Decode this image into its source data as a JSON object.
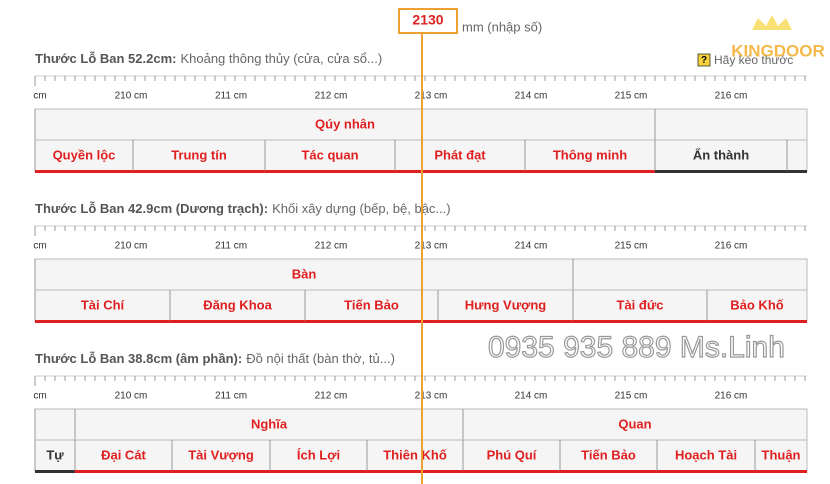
{
  "header": {
    "value": "2130",
    "unit": "mm (nhập số)",
    "logo": "KINGDOOR",
    "hint": "Hãy kéo thước"
  },
  "watermark": "0935 935 889 Ms.Linh",
  "rulers": [
    {
      "title": "Thước Lỗ Ban 52.2cm:",
      "description": "Khoảng thông thủy (cửa, cửa sổ...)",
      "ticks": [
        "cm",
        "210 cm",
        "211 cm",
        "212 cm",
        "213 cm",
        "214 cm",
        "215 cm",
        "216 cm"
      ],
      "groups": [
        "Qúy nhân"
      ],
      "cells": [
        "Quyền lộc",
        "Trung tín",
        "Tác quan",
        "Phát đạt",
        "Thông minh",
        "Ẩn thành"
      ]
    },
    {
      "title": "Thước Lỗ Ban 42.9cm (Dương trạch):",
      "description": "Khối xây dựng (bếp, bệ, bậc...)",
      "ticks": [
        "cm",
        "210 cm",
        "211 cm",
        "212 cm",
        "213 cm",
        "214 cm",
        "215 cm",
        "216 cm"
      ],
      "groups": [
        "Bàn"
      ],
      "cells": [
        "Tài Chí",
        "Đăng Khoa",
        "Tiến Bảo",
        "Hưng Vượng",
        "Tài đức",
        "Bảo Khố"
      ]
    },
    {
      "title": "Thước Lỗ Ban 38.8cm (âm phần):",
      "description": "Đồ nội thất (bàn thờ, tủ...)",
      "ticks": [
        "cm",
        "210 cm",
        "211 cm",
        "212 cm",
        "213 cm",
        "214 cm",
        "215 cm",
        "216 cm"
      ],
      "groups": [
        "Nghĩa",
        "Quan"
      ],
      "cells": [
        "Tự",
        "Đại Cát",
        "Tài Vượng",
        "Ích Lợi",
        "Thiên Khố",
        "Phú Quí",
        "Tiến Bảo",
        "Hoạch Tài",
        "Thuận"
      ]
    }
  ]
}
